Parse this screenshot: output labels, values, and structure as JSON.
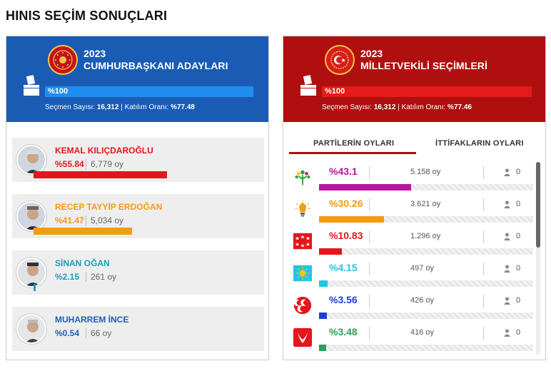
{
  "page": {
    "title": "HINIS SEÇİM SONUÇLARI"
  },
  "presidential": {
    "year": "2023",
    "name": "CUMHURBAŞKANI ADAYLARI",
    "progress_label": "%100",
    "progress": 1.0,
    "voters_label": "Seçmen Sayısı:",
    "voters": "16,312",
    "turnout_label": "Katılım Oranı:",
    "turnout": "%77.48",
    "candidates": [
      {
        "name": "KEMAL KILIÇDAROĞLU",
        "pct": "%55.84",
        "votes": "6,779 oy",
        "share": 0.5584,
        "color": "#e4161c"
      },
      {
        "name": "RECEP TAYYİP ERDOĞAN",
        "pct": "%41.47",
        "votes": "5,034 oy",
        "share": 0.4147,
        "color": "#f39c12"
      },
      {
        "name": "SİNAN OĞAN",
        "pct": "%2.15",
        "votes": "261 oy",
        "share": 0.0215,
        "color": "#1aa0b5"
      },
      {
        "name": "MUHARREM İNCE",
        "pct": "%0.54",
        "votes": "66 oy",
        "share": 0.0054,
        "color": "#1f5fb0"
      }
    ]
  },
  "parliamentary": {
    "year": "2023",
    "name": "MİLLETVEKİLİ SEÇİMLERİ",
    "progress_label": "%100",
    "progress": 1.0,
    "voters_label": "Seçmen Sayısı:",
    "voters": "16,312",
    "turnout_label": "Katılım Oranı:",
    "turnout": "%77.46",
    "tabs": {
      "parties": "PARTİLERİN OYLARI",
      "alliances": "İTTİFAKLARIN OYLARI"
    },
    "parties": [
      {
        "logo": "yesil-sol-logo-icon",
        "pct": "%43.1",
        "votes": "5.158 oy",
        "seats": "0",
        "share": 0.431,
        "color": "#b5179e"
      },
      {
        "logo": "ak-parti-logo-icon",
        "pct": "%30.26",
        "votes": "3.621 oy",
        "seats": "0",
        "share": 0.3026,
        "color": "#f39c12"
      },
      {
        "logo": "chp-logo-icon",
        "pct": "%10.83",
        "votes": "1.296 oy",
        "seats": "0",
        "share": 0.1083,
        "color": "#e4161c"
      },
      {
        "logo": "iyi-parti-logo-icon",
        "pct": "%4.15",
        "votes": "497 oy",
        "seats": "0",
        "share": 0.0415,
        "color": "#22c4e6"
      },
      {
        "logo": "mhp-logo-icon",
        "pct": "%3.56",
        "votes": "426 oy",
        "seats": "0",
        "share": 0.0356,
        "color": "#1a3fd6"
      },
      {
        "logo": "yeniden-refah-logo-icon",
        "pct": "%3.48",
        "votes": "416 oy",
        "seats": "0",
        "share": 0.0348,
        "color": "#2e9e5b"
      }
    ]
  },
  "icons": {
    "seat": "person-icon",
    "ballot": "ballot-box-icon",
    "seal": "emblem-icon"
  }
}
